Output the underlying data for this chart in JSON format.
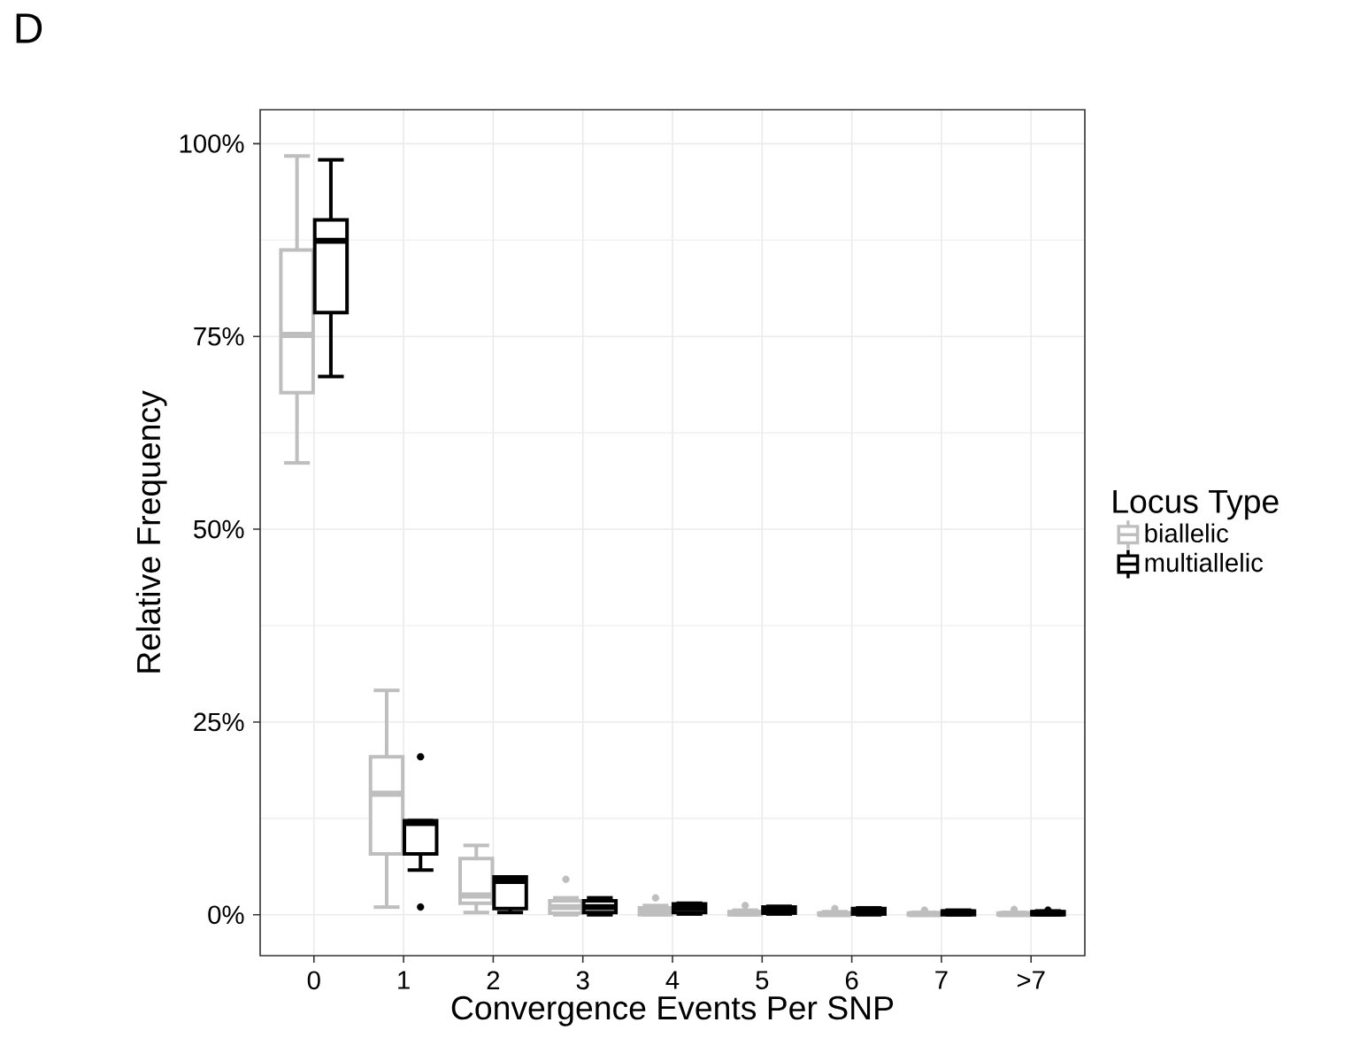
{
  "chart_data": {
    "type": "box",
    "xlabel": "Convergence Events Per SNP",
    "ylabel": "Relative Frequency",
    "legend_title": "Locus Type",
    "annotations": [
      "D"
    ],
    "categories": [
      "0",
      "1",
      "2",
      "3",
      "4",
      "5",
      "6",
      "7",
      ">7"
    ],
    "ylim": [
      -5.3,
      104.4
    ],
    "yticks": [
      {
        "value": 0,
        "label": "0%"
      },
      {
        "value": 25,
        "label": "25%"
      },
      {
        "value": 50,
        "label": "50%"
      },
      {
        "value": 75,
        "label": "75%"
      },
      {
        "value": 100,
        "label": "100%"
      }
    ],
    "grid": true,
    "legend": "right",
    "series": [
      {
        "name": "biallelic",
        "color": "#bebebe",
        "boxes": [
          {
            "low": 58.6,
            "q1": 67.7,
            "median": 75.2,
            "q3": 86.2,
            "high": 98.4
          },
          {
            "low": 1.0,
            "q1": 7.9,
            "median": 15.7,
            "q3": 20.5,
            "high": 29.1
          },
          {
            "low": 0.3,
            "q1": 1.5,
            "median": 2.5,
            "q3": 7.3,
            "high": 9.0
          },
          {
            "low": 0,
            "q1": 0.2,
            "median": 1.0,
            "q3": 1.8,
            "high": 2.2,
            "outliers": [
              4.6
            ]
          },
          {
            "low": 0,
            "q1": 0,
            "median": 0.4,
            "q3": 0.9,
            "high": 1.2,
            "outliers": [
              2.2
            ]
          },
          {
            "low": 0,
            "q1": 0,
            "median": 0.2,
            "q3": 0.4,
            "high": 0.6,
            "outliers": [
              1.2
            ]
          },
          {
            "low": 0,
            "q1": 0,
            "median": 0.1,
            "q3": 0.2,
            "high": 0.4,
            "outliers": [
              0.8
            ]
          },
          {
            "low": 0,
            "q1": 0,
            "median": 0.1,
            "q3": 0.2,
            "high": 0.3,
            "outliers": [
              0.6
            ]
          },
          {
            "low": 0,
            "q1": 0,
            "median": 0.1,
            "q3": 0.2,
            "high": 0.3,
            "outliers": [
              0.7
            ]
          }
        ]
      },
      {
        "name": "multiallelic",
        "color": "#000000",
        "boxes": [
          {
            "low": 69.8,
            "q1": 78.1,
            "median": 87.4,
            "q3": 90.1,
            "high": 97.9
          },
          {
            "low": 5.8,
            "q1": 7.9,
            "median": 11.9,
            "q3": 12.2,
            "high": 12.2,
            "outliers": [
              20.5,
              1.0
            ]
          },
          {
            "low": 0.3,
            "q1": 0.8,
            "median": 4.4,
            "q3": 4.9,
            "high": 4.9
          },
          {
            "low": 0,
            "q1": 0.3,
            "median": 1.0,
            "q3": 1.8,
            "high": 2.2
          },
          {
            "low": 0.1,
            "q1": 0.3,
            "median": 0.9,
            "q3": 1.4,
            "high": 1.5
          },
          {
            "low": 0.1,
            "q1": 0.2,
            "median": 0.6,
            "q3": 1.0,
            "high": 1.1
          },
          {
            "low": 0,
            "q1": 0.1,
            "median": 0.4,
            "q3": 0.8,
            "high": 0.9
          },
          {
            "low": 0,
            "q1": 0,
            "median": 0.3,
            "q3": 0.5,
            "high": 0.6
          },
          {
            "low": 0,
            "q1": 0,
            "median": 0.2,
            "q3": 0.4,
            "high": 0.5,
            "outliers": [
              0.6
            ]
          }
        ]
      }
    ]
  }
}
